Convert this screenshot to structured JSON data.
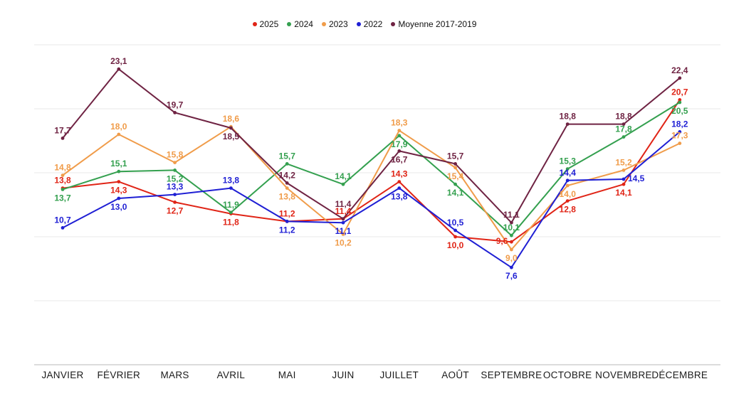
{
  "chart_data": {
    "type": "line",
    "categories": [
      "JANVIER",
      "FÉVRIER",
      "MARS",
      "AVRIL",
      "MAI",
      "JUIN",
      "JUILLET",
      "AOÛT",
      "SEPTEMBRE",
      "OCTOBRE",
      "NOVEMBRE",
      "DÉCEMBRE"
    ],
    "series": [
      {
        "name": "2025",
        "color": "#e02416",
        "values": [
          13.8,
          14.3,
          12.7,
          11.8,
          11.2,
          11.4,
          14.3,
          10.0,
          9.6,
          12.8,
          14.1,
          20.7
        ]
      },
      {
        "name": "2024",
        "color": "#34a04f",
        "values": [
          13.7,
          15.1,
          15.2,
          11.9,
          15.7,
          14.1,
          17.9,
          14.1,
          10.1,
          15.3,
          17.8,
          20.5
        ]
      },
      {
        "name": "2023",
        "color": "#f09c4a",
        "values": [
          14.8,
          18.0,
          15.8,
          18.6,
          13.8,
          10.2,
          18.3,
          15.4,
          9.0,
          14.0,
          15.2,
          17.3
        ]
      },
      {
        "name": "2022",
        "color": "#1f1fd4",
        "values": [
          10.7,
          13.0,
          13.3,
          13.8,
          11.2,
          11.1,
          13.8,
          10.5,
          7.6,
          14.4,
          14.5,
          18.2
        ]
      },
      {
        "name": "Moyenne 2017-2019",
        "color": "#6f2343",
        "values": [
          17.7,
          23.1,
          19.7,
          18.5,
          14.2,
          11.4,
          16.7,
          15.7,
          11.1,
          18.8,
          18.8,
          22.4
        ]
      }
    ],
    "ylim": [
      0,
      28
    ],
    "gridline_values": [
      5,
      10,
      15,
      20,
      25
    ],
    "grid": "horizontal-only",
    "legend_position": "top-center",
    "decimal_separator": ",",
    "point_labels_shown": true,
    "y_axis_labels_shown": false
  },
  "colors": {
    "gridline": "#e9e9e9",
    "axis_line": "#c6c6c6",
    "month_label": "#1b1b1b",
    "legend_text": "#111111",
    "background": "#ffffff"
  }
}
